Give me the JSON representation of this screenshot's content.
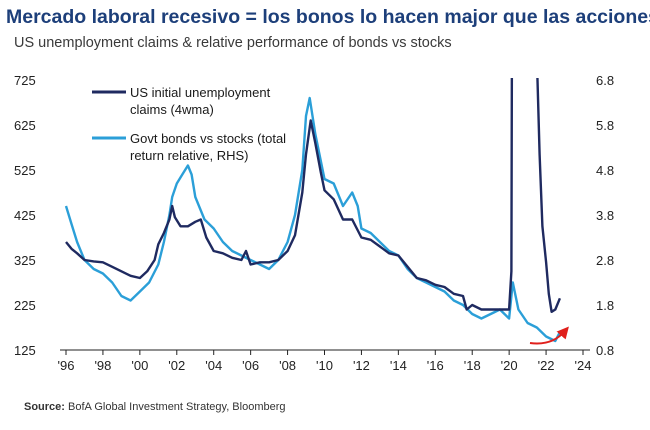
{
  "header": {
    "title": "Mercado laboral recesivo = los bonos lo hacen major que las acciones",
    "subtitle": "US unemployment claims & relative performance of bonds vs stocks"
  },
  "source": {
    "label": "Source:",
    "text": "BofA Global Investment Strategy, Bloomberg"
  },
  "colors": {
    "claims": "#1f2a60",
    "bonds": "#2b9fd8",
    "arrow": "#e0201c",
    "title": "#1d3f7a"
  },
  "chart_data": {
    "type": "line",
    "title": "US unemployment claims & relative performance of bonds vs stocks",
    "xlim": [
      1996,
      2024
    ],
    "xticks": [
      1996,
      1998,
      2000,
      2002,
      2004,
      2006,
      2008,
      2010,
      2012,
      2014,
      2016,
      2018,
      2020,
      2022,
      2024
    ],
    "xtick_labels": [
      "'96",
      "'98",
      "'00",
      "'02",
      "'04",
      "'06",
      "'08",
      "'10",
      "'12",
      "'14",
      "'16",
      "'18",
      "'20",
      "'22",
      "'24"
    ],
    "ylim_left": [
      125,
      725
    ],
    "yticks_left": [
      125,
      225,
      325,
      425,
      525,
      625,
      725
    ],
    "ylim_right": [
      0.8,
      6.8
    ],
    "yticks_right": [
      "0.8",
      "1.8",
      "2.8",
      "3.8",
      "4.8",
      "5.8",
      "6.8"
    ],
    "series": [
      {
        "name": "US initial unemployment claims (4wma)",
        "legend": [
          "US initial unemployment",
          "claims (4wma)"
        ],
        "axis": "left",
        "x": [
          1996.0,
          1996.3,
          1996.6,
          1997.0,
          1997.5,
          1998.0,
          1998.5,
          1999.0,
          1999.5,
          2000.0,
          2000.4,
          2000.8,
          2001.0,
          2001.3,
          2001.6,
          2001.75,
          2001.9,
          2002.2,
          2002.6,
          2003.0,
          2003.3,
          2003.6,
          2004.0,
          2004.5,
          2005.0,
          2005.5,
          2005.75,
          2006.0,
          2006.5,
          2007.0,
          2007.5,
          2008.0,
          2008.4,
          2008.8,
          2009.0,
          2009.25,
          2009.5,
          2009.8,
          2010.0,
          2010.5,
          2011.0,
          2011.5,
          2012.0,
          2012.5,
          2013.0,
          2013.5,
          2014.0,
          2014.5,
          2015.0,
          2015.5,
          2016.0,
          2016.5,
          2017.0,
          2017.5,
          2017.7,
          2018.0,
          2018.5,
          2019.0,
          2019.5,
          2020.0,
          2020.12,
          2020.15,
          2021.5,
          2021.65,
          2021.8,
          2022.0,
          2022.15,
          2022.3,
          2022.5,
          2022.75
        ],
        "y": [
          365,
          350,
          340,
          325,
          322,
          320,
          310,
          300,
          290,
          285,
          300,
          325,
          360,
          385,
          415,
          445,
          420,
          400,
          400,
          410,
          415,
          375,
          345,
          340,
          330,
          325,
          345,
          315,
          320,
          320,
          325,
          345,
          380,
          475,
          560,
          635,
          585,
          520,
          480,
          460,
          415,
          415,
          375,
          370,
          355,
          340,
          335,
          310,
          285,
          280,
          270,
          265,
          250,
          245,
          215,
          225,
          215,
          215,
          215,
          215,
          300,
          780,
          780,
          560,
          400,
          320,
          250,
          210,
          215,
          240
        ]
      },
      {
        "name": "Govt bonds vs stocks (total return relative, RHS)",
        "legend": [
          "Govt bonds vs stocks (total",
          "return relative, RHS)"
        ],
        "axis": "right",
        "x": [
          1996.0,
          1996.3,
          1996.6,
          1997.0,
          1997.5,
          1998.0,
          1998.5,
          1999.0,
          1999.5,
          2000.0,
          2000.5,
          2001.0,
          2001.3,
          2001.6,
          2001.75,
          2002.0,
          2002.3,
          2002.6,
          2002.8,
          2003.0,
          2003.5,
          2004.0,
          2004.5,
          2005.0,
          2005.5,
          2006.0,
          2006.5,
          2007.0,
          2007.5,
          2008.0,
          2008.4,
          2008.8,
          2009.0,
          2009.2,
          2009.5,
          2010.0,
          2010.5,
          2011.0,
          2011.5,
          2011.8,
          2012.0,
          2012.5,
          2013.0,
          2013.5,
          2014.0,
          2014.5,
          2015.0,
          2015.5,
          2016.0,
          2016.5,
          2017.0,
          2017.5,
          2018.0,
          2018.5,
          2019.0,
          2019.5,
          2020.0,
          2020.2,
          2020.5,
          2021.0,
          2021.5,
          2022.0,
          2022.5,
          2022.75
        ],
        "y": [
          4.0,
          3.6,
          3.2,
          2.8,
          2.6,
          2.5,
          2.3,
          2.0,
          1.9,
          2.1,
          2.3,
          2.7,
          3.2,
          3.8,
          4.2,
          4.5,
          4.7,
          4.9,
          4.7,
          4.2,
          3.7,
          3.5,
          3.2,
          3.0,
          2.9,
          2.8,
          2.7,
          2.6,
          2.8,
          3.2,
          3.8,
          4.8,
          6.0,
          6.4,
          5.6,
          4.6,
          4.5,
          4.0,
          4.3,
          4.0,
          3.5,
          3.4,
          3.2,
          3.0,
          2.9,
          2.6,
          2.4,
          2.3,
          2.2,
          2.1,
          1.9,
          1.8,
          1.6,
          1.5,
          1.6,
          1.7,
          1.5,
          2.3,
          1.7,
          1.4,
          1.3,
          1.1,
          1.0,
          1.2
        ]
      }
    ]
  }
}
